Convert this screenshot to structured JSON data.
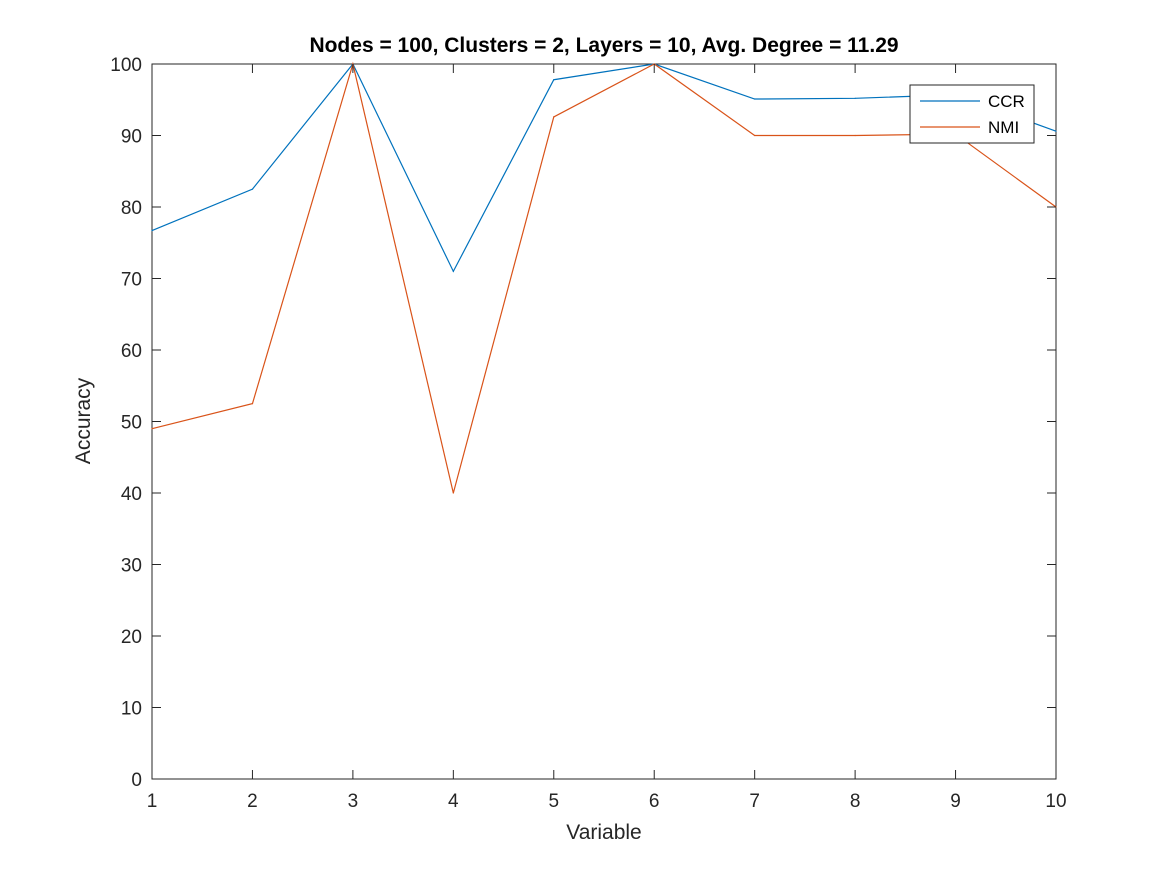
{
  "chart_data": {
    "type": "line",
    "title": "Nodes = 100, Clusters = 2, Layers = 10, Avg. Degree = 11.29",
    "xlabel": "Variable",
    "ylabel": "Accuracy",
    "x": [
      1,
      2,
      3,
      4,
      5,
      6,
      7,
      8,
      9,
      10
    ],
    "xlim": [
      1,
      10
    ],
    "ylim": [
      0,
      100
    ],
    "xticks": [
      "1",
      "2",
      "3",
      "4",
      "5",
      "6",
      "7",
      "8",
      "9",
      "10"
    ],
    "yticks": [
      "0",
      "10",
      "20",
      "30",
      "40",
      "50",
      "60",
      "70",
      "80",
      "90",
      "100"
    ],
    "grid": false,
    "legend_position": "top-right",
    "series": [
      {
        "name": "CCR",
        "color": "#0072BD",
        "values": [
          76.7,
          82.5,
          100,
          71,
          97.8,
          100,
          95.1,
          95.2,
          95.7,
          90.6
        ]
      },
      {
        "name": "NMI",
        "color": "#D95319",
        "values": [
          49,
          52.5,
          100,
          40,
          92.6,
          100,
          90,
          90,
          90.2,
          80
        ]
      }
    ]
  }
}
